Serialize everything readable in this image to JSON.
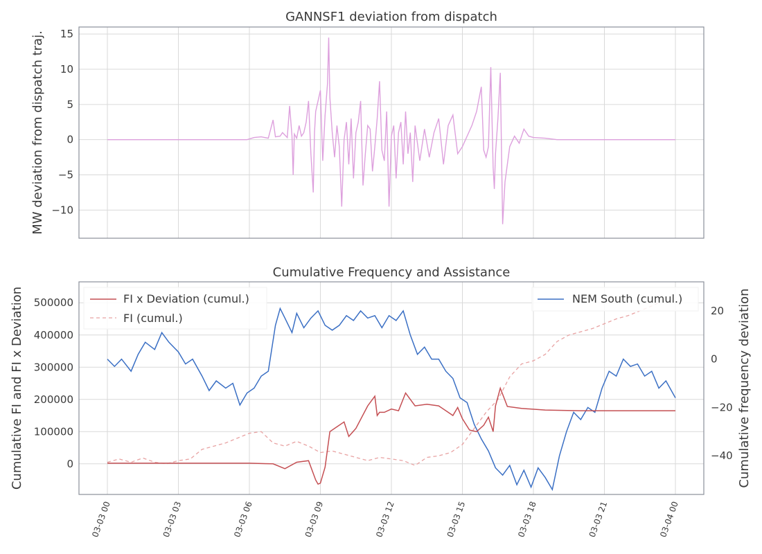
{
  "chart_data": [
    {
      "type": "line",
      "title": "GANNSF1 deviation from dispatch",
      "ylabel": "MW deviation from dispatch traj.",
      "xlabel": "",
      "ylim": [
        -14,
        16
      ],
      "yticks": [
        -10,
        -5,
        0,
        5,
        10,
        15
      ],
      "yticklabels": [
        "−10",
        "−5",
        "0",
        "5",
        "10",
        "15"
      ],
      "grid": true,
      "series": [
        {
          "color": "#dda0dd",
          "x_hours": [
            0,
            2,
            4,
            5.9,
            6.2,
            6.5,
            6.8,
            7.0,
            7.1,
            7.3,
            7.4,
            7.6,
            7.7,
            7.8,
            7.85,
            7.9,
            8.0,
            8.1,
            8.2,
            8.3,
            8.4,
            8.5,
            8.6,
            8.7,
            8.75,
            8.8,
            8.9,
            9.0,
            9.1,
            9.2,
            9.3,
            9.35,
            9.4,
            9.5,
            9.6,
            9.7,
            9.8,
            9.9,
            10.0,
            10.1,
            10.2,
            10.3,
            10.4,
            10.5,
            10.6,
            10.7,
            10.8,
            10.9,
            11.0,
            11.1,
            11.2,
            11.3,
            11.4,
            11.5,
            11.6,
            11.7,
            11.8,
            11.9,
            12.0,
            12.1,
            12.2,
            12.3,
            12.4,
            12.5,
            12.6,
            12.7,
            12.8,
            12.9,
            13.0,
            13.2,
            13.4,
            13.6,
            13.8,
            14.0,
            14.2,
            14.4,
            14.6,
            14.8,
            15.0,
            15.2,
            15.4,
            15.6,
            15.8,
            15.9,
            16.0,
            16.1,
            16.2,
            16.3,
            16.35,
            16.4,
            16.5,
            16.6,
            16.7,
            16.8,
            17.0,
            17.2,
            17.4,
            17.6,
            17.8,
            18.0,
            18.5,
            19.0,
            20,
            22,
            24
          ],
          "values": [
            0,
            0,
            0,
            0,
            0.3,
            0.4,
            0.2,
            2.8,
            0.4,
            0.5,
            1.0,
            0.3,
            4.8,
            0.5,
            -5.0,
            0.8,
            0.2,
            2.0,
            0.5,
            1.0,
            2.5,
            5.5,
            -2.0,
            -7.5,
            1.0,
            4.0,
            5.5,
            7.0,
            -3.0,
            3.5,
            8.0,
            14.5,
            6.0,
            1.0,
            -2.5,
            2.0,
            -1.0,
            -9.5,
            0.0,
            2.5,
            -3.5,
            3.0,
            -5.5,
            1.0,
            2.5,
            5.5,
            -6.5,
            -2.0,
            2.0,
            1.5,
            -4.5,
            -1.0,
            3.0,
            8.3,
            -1.5,
            -3.0,
            4.0,
            -9.5,
            0.5,
            2.0,
            -5.5,
            1.0,
            2.5,
            -3.5,
            4.0,
            -2.0,
            1.0,
            -6.0,
            2.0,
            -3.0,
            1.5,
            -2.5,
            1.0,
            3.0,
            -3.5,
            2.0,
            3.5,
            -2.0,
            -1.0,
            0.5,
            2.0,
            4.0,
            7.5,
            -1.5,
            -2.5,
            -1.0,
            10.3,
            -4.0,
            -7.0,
            -2.0,
            3.0,
            9.5,
            -12.0,
            -6.0,
            -1.0,
            0.5,
            -0.5,
            1.5,
            0.5,
            0.3,
            0.2,
            0,
            0,
            0,
            0
          ]
        }
      ]
    },
    {
      "type": "line",
      "title": "Cumulative Frequency and Assistance",
      "ylabel": "Cumulative FI and FI x Deviation",
      "y2label": "Cumulative frequency deviation",
      "xlabel": "",
      "ylim": [
        -95000,
        565000
      ],
      "yticks": [
        0,
        100000,
        200000,
        300000,
        400000,
        500000
      ],
      "yticklabels": [
        "0",
        "100000",
        "200000",
        "300000",
        "400000",
        "500000"
      ],
      "y2lim": [
        -56,
        32
      ],
      "y2ticks": [
        -40,
        -20,
        0,
        20
      ],
      "y2ticklabels": [
        "−40",
        "−20",
        "0",
        "20"
      ],
      "grid": true,
      "xticklabels": [
        "03-03 00",
        "03-03 03",
        "03-03 06",
        "03-03 09",
        "03-03 12",
        "03-03 15",
        "03-03 18",
        "03-03 21",
        "03-04 00"
      ],
      "legend_left_placement": "upper-left",
      "legend_right_placement": "upper-right",
      "series": [
        {
          "name": "FI x Deviation (cumul.)",
          "axis": "left",
          "color": "#c44e52",
          "style": "solid",
          "x_hours": [
            0,
            3,
            6,
            7.0,
            7.5,
            8.0,
            8.5,
            8.8,
            8.9,
            9.0,
            9.2,
            9.4,
            9.6,
            10.0,
            10.2,
            10.5,
            11.0,
            11.3,
            11.4,
            11.5,
            11.7,
            12.0,
            12.3,
            12.6,
            13.0,
            13.5,
            14.0,
            14.4,
            14.6,
            14.8,
            15.0,
            15.3,
            15.6,
            15.9,
            16.1,
            16.3,
            16.4,
            16.6,
            16.9,
            17.5,
            18.5,
            20,
            24
          ],
          "values": [
            2000,
            2000,
            2000,
            0,
            -15000,
            5000,
            10000,
            -50000,
            -63000,
            -60000,
            -10000,
            100000,
            110000,
            130000,
            85000,
            110000,
            180000,
            210000,
            150000,
            160000,
            160000,
            170000,
            165000,
            220000,
            180000,
            185000,
            180000,
            160000,
            150000,
            175000,
            140000,
            105000,
            100000,
            120000,
            145000,
            100000,
            180000,
            235000,
            178000,
            172000,
            167000,
            165000,
            165000
          ]
        },
        {
          "name": "FI (cumul.)",
          "axis": "left",
          "color": "#e8a2a2",
          "style": "dashed",
          "x_hours": [
            0,
            0.5,
            1.0,
            1.5,
            2.0,
            2.5,
            3.0,
            3.5,
            4.0,
            4.5,
            5.0,
            5.5,
            6.0,
            6.5,
            7.0,
            7.5,
            8.0,
            8.5,
            9.0,
            9.5,
            10.0,
            10.5,
            11.0,
            11.5,
            12.0,
            12.5,
            13.0,
            13.5,
            14.0,
            14.5,
            15.0,
            15.5,
            16.0,
            16.5,
            17.0,
            17.5,
            18.0,
            18.5,
            19.0,
            19.5,
            20.0,
            20.5,
            21.0,
            21.5,
            22.0,
            22.5,
            23.0,
            23.3
          ],
          "values": [
            5000,
            15000,
            5000,
            18000,
            5000,
            0,
            10000,
            15000,
            45000,
            55000,
            65000,
            80000,
            95000,
            100000,
            65000,
            55000,
            70000,
            55000,
            35000,
            40000,
            30000,
            20000,
            10000,
            20000,
            15000,
            10000,
            -5000,
            20000,
            25000,
            35000,
            60000,
            110000,
            160000,
            200000,
            270000,
            310000,
            320000,
            340000,
            380000,
            400000,
            410000,
            420000,
            435000,
            450000,
            460000,
            475000,
            490000,
            500000
          ]
        },
        {
          "name": "NEM South (cumul.)",
          "axis": "right",
          "color": "#3a6fc4",
          "style": "solid",
          "x_hours": [
            0,
            0.3,
            0.6,
            1.0,
            1.3,
            1.6,
            2.0,
            2.3,
            2.6,
            3.0,
            3.3,
            3.6,
            4.0,
            4.3,
            4.6,
            5.0,
            5.3,
            5.6,
            5.9,
            6.2,
            6.5,
            6.8,
            7.1,
            7.3,
            7.5,
            7.8,
            8.0,
            8.3,
            8.6,
            8.9,
            9.2,
            9.5,
            9.8,
            10.1,
            10.4,
            10.7,
            11.0,
            11.3,
            11.6,
            11.9,
            12.2,
            12.5,
            12.8,
            13.1,
            13.4,
            13.7,
            14.0,
            14.3,
            14.6,
            14.9,
            15.2,
            15.5,
            15.8,
            16.1,
            16.4,
            16.7,
            17.0,
            17.3,
            17.6,
            17.9,
            18.2,
            18.5,
            18.8,
            19.1,
            19.4,
            19.7,
            20.0,
            20.3,
            20.6,
            20.9,
            21.2,
            21.5,
            21.8,
            22.1,
            22.4,
            22.7,
            23.0,
            23.3,
            23.6,
            24.0
          ],
          "values": [
            0,
            -3,
            0,
            -5,
            2,
            7,
            4,
            11,
            7,
            3,
            -2,
            0,
            -7,
            -13,
            -9,
            -12,
            -10,
            -19,
            -14,
            -12,
            -7,
            -5,
            14,
            21,
            17,
            11,
            19,
            13,
            17,
            20,
            14,
            12,
            14,
            18,
            16,
            20,
            17,
            18,
            13,
            18,
            16,
            20,
            10,
            2,
            5,
            0,
            0,
            -5,
            -8,
            -16,
            -18,
            -27,
            -33,
            -38,
            -45,
            -48,
            -44,
            -52,
            -46,
            -53,
            -45,
            -49,
            -54,
            -40,
            -30,
            -22,
            -25,
            -20,
            -22,
            -12,
            -5,
            -7,
            0,
            -3,
            -2,
            -7,
            -5,
            -12,
            -9,
            -16
          ]
        }
      ]
    }
  ]
}
